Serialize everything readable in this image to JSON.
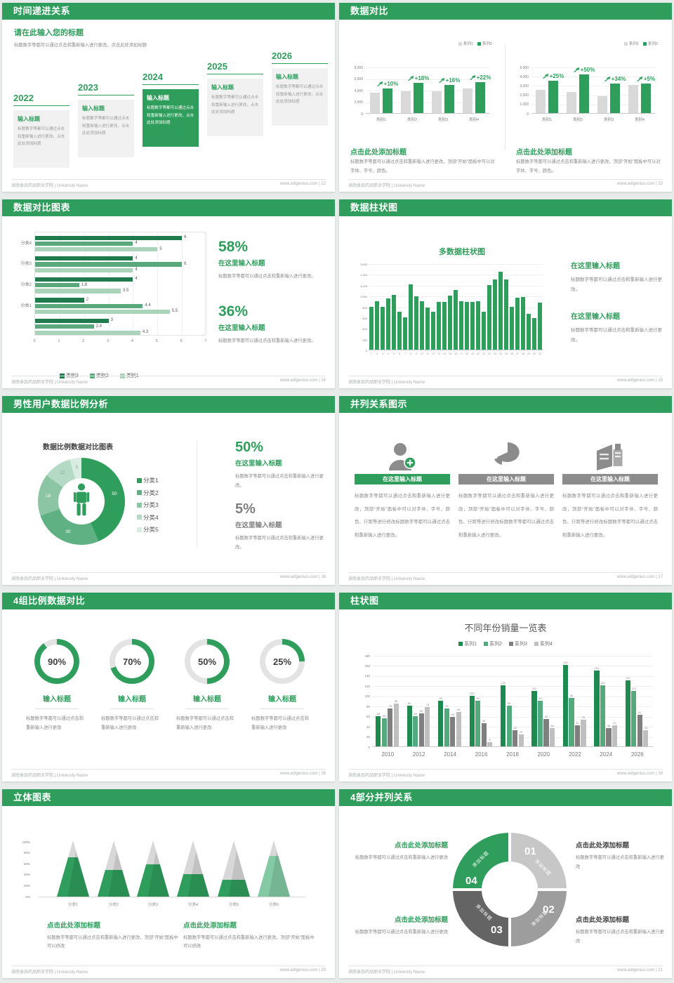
{
  "page": {
    "bg": "#e7eceb",
    "accent": "#2f9e5c"
  },
  "footer": {
    "left": "湖南食品药品职业学院 | University Name",
    "site": "www.aotgenius.com"
  },
  "slides": [
    {
      "title": "时间递进关系",
      "page_no": "12",
      "heading": "请在此输入您的标题",
      "heading_body": "标题数字等都可以通过点击和重新输入进行更改，点击此处添加标题",
      "items": [
        {
          "year": "2022",
          "title": "输入标题",
          "body": "标题数字等都可以通过点击和重新输入进行更改，点击此处添加标题",
          "highlight": false
        },
        {
          "year": "2023",
          "title": "输入标题",
          "body": "标题数字等都可以通过点击和重新输入进行更改，点击此处添加标题",
          "highlight": false
        },
        {
          "year": "2024",
          "title": "输入标题",
          "body": "标题数字等都可以通过点击和重新输入进行更改，点击此处添加标题",
          "highlight": true
        },
        {
          "year": "2025",
          "title": "输入标题",
          "body": "标题数字等都可以通过点击和重新输入进行更改，点击此处添加标题",
          "highlight": false
        },
        {
          "year": "2026",
          "title": "输入标题",
          "body": "标题数字等都可以通过点击和重新输入进行更改，点击此处添加标题",
          "highlight": false
        }
      ]
    },
    {
      "title": "数据对比",
      "page_no": "13",
      "panels": [
        {
          "caption_title": "点击此处添加标题",
          "caption_body": "标题数字等都可以通过点击和重新输入进行更改，顶部“开始”面板中可以对字体、字号、颜色。"
        },
        {
          "caption_title": "点击此处添加标题",
          "caption_body": "标题数字等都可以通过点击和重新输入进行更改，顶部“开始”面板中可以对字体、字号、颜色。"
        }
      ]
    },
    {
      "title": "数据对比图表",
      "page_no": "14",
      "stats": [
        {
          "pct": "58%",
          "sub": "在这里输入标题",
          "body": "标题数字等都可以通过点击和重新输入进行更改。"
        },
        {
          "pct": "36%",
          "sub": "在这里输入标题",
          "body": "标题数字等都可以通过点击和重新输入进行更改。"
        }
      ]
    },
    {
      "title": "数据柱状图",
      "page_no": "15",
      "blocks": [
        {
          "heading": "在这里输入标题",
          "body": "标题数字等都可以通过点击和重新输入进行更改。"
        },
        {
          "heading": "在这里输入标题",
          "body": "标题数字等都可以通过点击和重新输入进行更改。"
        }
      ]
    },
    {
      "title": "男性用户数据比例分析",
      "page_no": "16",
      "stats": [
        {
          "pct": "50%",
          "sub": "在这里输入标题",
          "body": "标题数字等都可以通过点击和重新输入进行更改。",
          "green": true
        },
        {
          "pct": "5%",
          "sub": "在这里输入标题",
          "body": "标题数字等都可以通过点击和重新输入进行更改。",
          "green": false
        }
      ]
    },
    {
      "title": "并列关系图示",
      "page_no": "17",
      "columns": [
        {
          "title": "在这里输入标题",
          "body": "标题数字等都可以通过点击和重新输入进行更改，顶部“开始”面板中可以对字体、字号、颜色、行距等进行修改标题数字等都可以通过点击和重新输入进行更改。",
          "icon": "nurse-icon"
        },
        {
          "title": "在这里输入标题",
          "body": "标题数字等都可以通过点击和重新输入进行更改，顶部“开始”面板中可以对字体、字号、颜色、行距等进行修改标题数字等都可以通过点击和重新输入进行更改。",
          "icon": "pie-3d-icon"
        },
        {
          "title": "在这里输入标题",
          "body": "标题数字等都可以通过点击和重新输入进行更改，顶部“开始”面板中可以对字体、字号、颜色、行距等进行修改标题数字等都可以通过点击和重新输入进行更改。",
          "icon": "building-icon"
        }
      ]
    },
    {
      "title": "4组比例数据对比",
      "page_no": "18",
      "gauges": [
        {
          "pct": "90%",
          "title": "输入标题",
          "body": "标题数字等都可以通过点击和重新输入进行更改"
        },
        {
          "pct": "70%",
          "title": "输入标题",
          "body": "标题数字等都可以通过点击和重新输入进行更改"
        },
        {
          "pct": "50%",
          "title": "输入标题",
          "body": "标题数字等都可以通过点击和重新输入进行更改"
        },
        {
          "pct": "25%",
          "title": "输入标题",
          "body": "标题数字等都可以通过点击和重新输入进行更改"
        }
      ]
    },
    {
      "title": "柱状图",
      "page_no": "19"
    },
    {
      "title": "立体图表",
      "page_no": "20",
      "captions": [
        {
          "title": "点击此处添加标题",
          "body": "标题数字等都可以通过点击和重新输入进行更改，顶部“开始”面板中可以修改"
        },
        {
          "title": "点击此处添加标题",
          "body": "标题数字等都可以通过点击和重新输入进行更改，顶部“开始”面板中可以修改"
        }
      ]
    },
    {
      "title": "4部分并列关系",
      "page_no": "21",
      "blocks": [
        {
          "title": "点击此处添加标题",
          "body": "标题数字等都可以通过点击和重新输入进行更改"
        },
        {
          "title": "点击此处添加标题",
          "body": "标题数字等都可以通过点击和重新输入进行更改"
        },
        {
          "title": "点击此处添加标题",
          "body": "标题数字等都可以通过点击和重新输入进行更改"
        },
        {
          "title": "点击此处添加标题",
          "body": "标题数字等都可以通过点击和重新输入进行更改"
        }
      ]
    }
  ],
  "chart_data": [
    {
      "type": "bar",
      "categories": [
        "类别1",
        "类别2",
        "类别3",
        "类别4"
      ],
      "series": [
        {
          "name": "系列1",
          "color": "#d9d9d9",
          "values": [
            3500,
            3800,
            3700,
            4300
          ]
        },
        {
          "name": "系列2",
          "color": "#2f9e5c",
          "values": [
            4200,
            5200,
            4800,
            5300
          ]
        }
      ],
      "growth_labels": [
        "+10%",
        "+18%",
        "+16%",
        "+22%"
      ],
      "ylim": [
        0,
        8000
      ],
      "yticks": [
        "8,000",
        "6,000",
        "4,000",
        "2,000",
        "0"
      ]
    },
    {
      "type": "bar",
      "categories": [
        "类别1",
        "类别2",
        "类别3",
        "类别4"
      ],
      "series": [
        {
          "name": "系列1",
          "color": "#d9d9d9",
          "values": [
            2500,
            2300,
            1800,
            3050
          ]
        },
        {
          "name": "系列2",
          "color": "#2f9e5c",
          "values": [
            3500,
            4200,
            3200,
            3200
          ]
        }
      ],
      "growth_labels": [
        "+25%",
        "+50%",
        "+34%",
        "+5%"
      ],
      "ylim": [
        0,
        5000
      ],
      "yticks": [
        "5,000",
        "4,000",
        "3,000",
        "2,000",
        "1,000",
        "0"
      ]
    },
    {
      "type": "bar-horizontal",
      "categories": [
        "分类4",
        "分类3",
        "分类2",
        "分类1",
        ""
      ],
      "series": [
        {
          "name": "类别3",
          "color": "#1f7a4c",
          "values": [
            6,
            4,
            4,
            2,
            3
          ]
        },
        {
          "name": "类别2",
          "color": "#5aa97d",
          "values": [
            4,
            6,
            1.8,
            4.4,
            2.4
          ]
        },
        {
          "name": "类别1",
          "color": "#a9d4ba",
          "values": [
            5,
            4,
            3.5,
            5.5,
            4.3
          ]
        }
      ],
      "xlim": [
        0,
        7
      ],
      "xticks": [
        "0",
        "1",
        "2",
        "3",
        "4",
        "5",
        "6",
        "7"
      ]
    },
    {
      "type": "bar",
      "title": "多数据柱状图",
      "color": "#2f9e5c",
      "categories": [
        "1",
        "2",
        "3",
        "4",
        "5",
        "6",
        "7",
        "8",
        "9",
        "10",
        "11",
        "12",
        "13",
        "14",
        "15",
        "16",
        "17",
        "18",
        "19",
        "20",
        "21",
        "22",
        "23",
        "24",
        "25",
        "26",
        "27",
        "28",
        "29",
        "30",
        "31"
      ],
      "values": [
        800,
        900,
        800,
        950,
        1020,
        700,
        600,
        1210,
        990,
        900,
        780,
        700,
        890,
        890,
        1000,
        1100,
        900,
        890,
        880,
        900,
        700,
        1200,
        1300,
        1450,
        1300,
        800,
        960,
        970,
        660,
        590,
        870
      ],
      "ylim": [
        0,
        1600
      ],
      "yticks": [
        "1,600",
        "1,400",
        "1,200",
        "1,000",
        "800",
        "600",
        "400",
        "200",
        "0"
      ]
    },
    {
      "type": "pie",
      "title": "数据比例数据对比图表",
      "labels": [
        "分类1",
        "分类2",
        "分类3",
        "分类4",
        "分类5"
      ],
      "values": [
        50,
        30,
        18,
        12,
        5
      ],
      "colors": [
        "#2f9e5c",
        "#5fb183",
        "#8cc5a4",
        "#b4d9c4",
        "#d9ece2"
      ]
    },
    {
      "type": "gauges",
      "values": [
        90,
        70,
        50,
        25
      ],
      "color": "#2f9e5c",
      "track": "#e3e3e3"
    },
    {
      "type": "bar",
      "title": "不同年份销量一览表",
      "categories": [
        "2010",
        "2012",
        "2014",
        "2016",
        "2018",
        "2020",
        "2022",
        "2024",
        "2026"
      ],
      "series": [
        {
          "name": "系列1",
          "color": "#1f8a4f",
          "values": [
            60,
            80,
            90,
            100,
            120,
            110,
            160,
            150,
            130
          ]
        },
        {
          "name": "系列2",
          "color": "#53ab7d",
          "values": [
            55,
            60,
            75,
            90,
            80,
            90,
            96,
            120,
            110
          ]
        },
        {
          "name": "系列3",
          "color": "#7f7f7f",
          "values": [
            75,
            65,
            58,
            46,
            32,
            54,
            42,
            36,
            62
          ]
        },
        {
          "name": "系列4",
          "color": "#bfbfbf",
          "values": [
            85,
            78,
            68,
            8,
            24,
            36,
            53,
            42,
            32
          ]
        }
      ],
      "ylim": [
        0,
        180
      ],
      "yticks": [
        "180",
        "160",
        "140",
        "120",
        "100",
        "80",
        "60",
        "40",
        "20",
        "0"
      ]
    },
    {
      "type": "pyramid",
      "categories": [
        "分类1",
        "分类2",
        "分类3",
        "分类4",
        "分类5",
        "分类6"
      ],
      "fill_percent": [
        70,
        48,
        57,
        40,
        30,
        72
      ],
      "colors": [
        "#2f9e5c",
        "#2f9e5c",
        "#2f9e5c",
        "#2f9e5c",
        "#2f9e5c",
        "#82c9a4"
      ],
      "top_color": "#d8d8d8",
      "yticks": [
        "100%",
        "80%",
        "60%",
        "40%",
        "20%",
        "0%"
      ]
    },
    {
      "type": "ring",
      "segments": [
        {
          "no": "01",
          "label": "添加标题",
          "color": "#c7c7c7"
        },
        {
          "no": "02",
          "label": "添加标题",
          "color": "#9d9d9d"
        },
        {
          "no": "03",
          "label": "添加标题",
          "color": "#646464"
        },
        {
          "no": "04",
          "label": "添加标题",
          "color": "#2f9e5c"
        }
      ]
    }
  ]
}
